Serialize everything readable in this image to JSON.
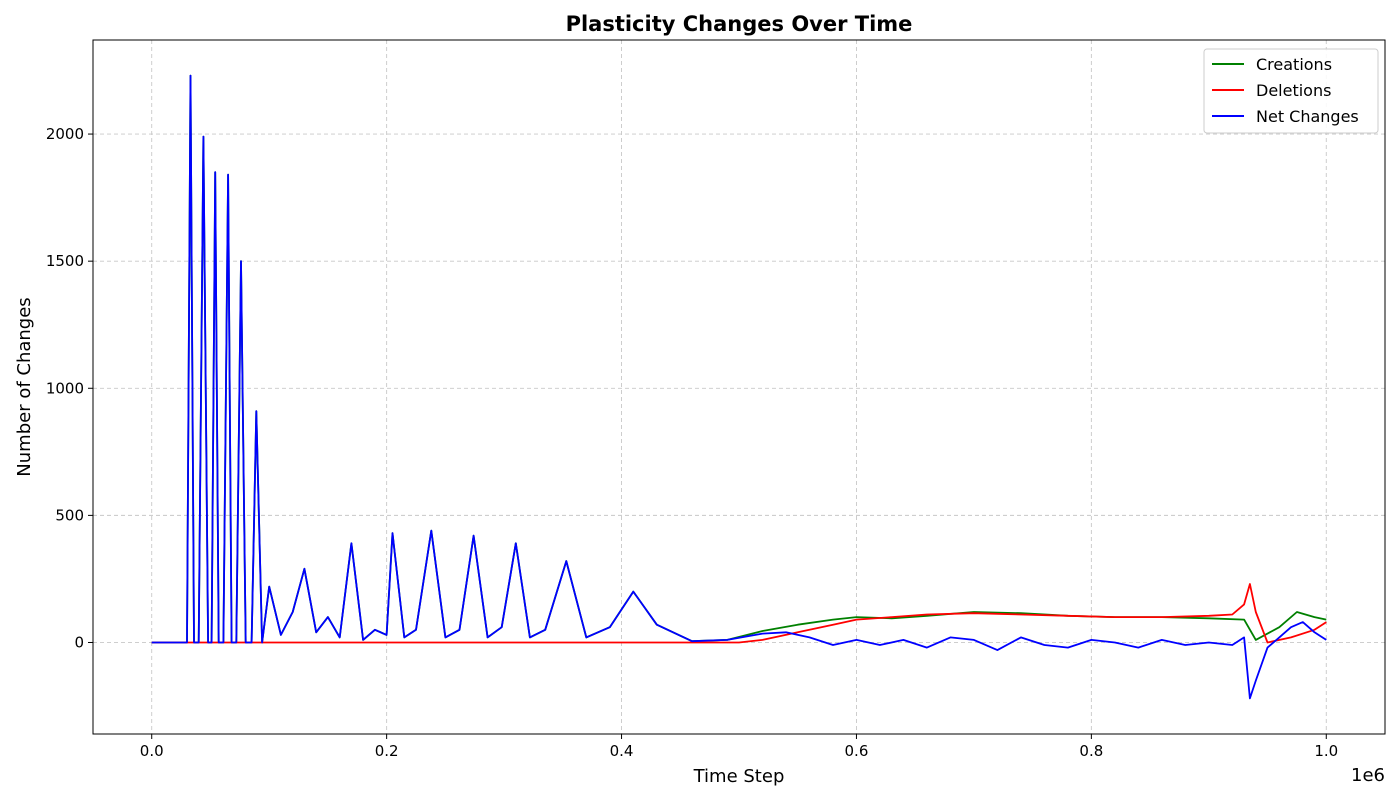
{
  "chart_data": {
    "type": "line",
    "title": "Plasticity Changes Over Time",
    "xlabel": "Time Step",
    "ylabel": "Number of Changes",
    "x_offset_label": "1e6",
    "xlim": [
      -0.05,
      1.05
    ],
    "ylim": [
      -360,
      2370
    ],
    "xticks": [
      0.0,
      0.2,
      0.4,
      0.6,
      0.8,
      1.0
    ],
    "xtick_labels": [
      "0.0",
      "0.2",
      "0.4",
      "0.6",
      "0.8",
      "1.0"
    ],
    "yticks": [
      0,
      500,
      1000,
      1500,
      2000
    ],
    "ytick_labels": [
      "0",
      "500",
      "1000",
      "1500",
      "2000"
    ],
    "grid": true,
    "legend_position": "top-right",
    "series": [
      {
        "name": "Creations",
        "color": "#008000",
        "x": [
          0.0,
          0.03,
          0.033,
          0.036,
          0.04,
          0.044,
          0.048,
          0.051,
          0.054,
          0.057,
          0.061,
          0.065,
          0.068,
          0.072,
          0.076,
          0.08,
          0.085,
          0.089,
          0.094,
          0.1,
          0.11,
          0.12,
          0.13,
          0.14,
          0.15,
          0.16,
          0.17,
          0.18,
          0.19,
          0.2,
          0.205,
          0.215,
          0.225,
          0.238,
          0.25,
          0.262,
          0.274,
          0.286,
          0.298,
          0.31,
          0.322,
          0.335,
          0.353,
          0.37,
          0.39,
          0.41,
          0.43,
          0.46,
          0.49,
          0.52,
          0.55,
          0.58,
          0.6,
          0.63,
          0.66,
          0.7,
          0.74,
          0.78,
          0.82,
          0.86,
          0.9,
          0.93,
          0.94,
          0.96,
          0.975,
          0.99,
          1.0
        ],
        "y": [
          0,
          0,
          2230,
          0,
          0,
          1990,
          0,
          0,
          1850,
          0,
          0,
          1840,
          0,
          0,
          1500,
          0,
          0,
          910,
          0,
          220,
          30,
          120,
          290,
          40,
          100,
          20,
          390,
          10,
          50,
          30,
          430,
          20,
          50,
          440,
          20,
          50,
          420,
          20,
          60,
          390,
          20,
          50,
          320,
          20,
          60,
          200,
          70,
          5,
          10,
          45,
          70,
          90,
          100,
          95,
          105,
          120,
          115,
          105,
          100,
          100,
          95,
          90,
          10,
          60,
          120,
          100,
          90
        ]
      },
      {
        "name": "Deletions",
        "color": "#ff0000",
        "x": [
          0.0,
          0.2,
          0.4,
          0.5,
          0.52,
          0.55,
          0.58,
          0.6,
          0.63,
          0.66,
          0.7,
          0.74,
          0.78,
          0.82,
          0.86,
          0.9,
          0.92,
          0.93,
          0.935,
          0.94,
          0.95,
          0.97,
          0.99,
          1.0
        ],
        "y": [
          0,
          0,
          0,
          0,
          10,
          40,
          70,
          90,
          100,
          110,
          115,
          110,
          105,
          100,
          100,
          105,
          110,
          150,
          230,
          120,
          0,
          20,
          50,
          80
        ]
      },
      {
        "name": "Net Changes",
        "color": "#0000ff",
        "x": [
          0.0,
          0.03,
          0.033,
          0.036,
          0.04,
          0.044,
          0.048,
          0.051,
          0.054,
          0.057,
          0.061,
          0.065,
          0.068,
          0.072,
          0.076,
          0.08,
          0.085,
          0.089,
          0.094,
          0.1,
          0.11,
          0.12,
          0.13,
          0.14,
          0.15,
          0.16,
          0.17,
          0.18,
          0.19,
          0.2,
          0.205,
          0.215,
          0.225,
          0.238,
          0.25,
          0.262,
          0.274,
          0.286,
          0.298,
          0.31,
          0.322,
          0.335,
          0.353,
          0.37,
          0.39,
          0.41,
          0.43,
          0.46,
          0.49,
          0.52,
          0.54,
          0.56,
          0.58,
          0.6,
          0.62,
          0.64,
          0.66,
          0.68,
          0.7,
          0.72,
          0.74,
          0.76,
          0.78,
          0.8,
          0.82,
          0.84,
          0.86,
          0.88,
          0.9,
          0.92,
          0.93,
          0.935,
          0.94,
          0.95,
          0.96,
          0.97,
          0.98,
          0.99,
          1.0
        ],
        "y": [
          0,
          0,
          2230,
          0,
          0,
          1990,
          0,
          0,
          1850,
          0,
          0,
          1840,
          0,
          0,
          1500,
          0,
          0,
          910,
          0,
          220,
          30,
          120,
          290,
          40,
          100,
          20,
          390,
          10,
          50,
          30,
          430,
          20,
          50,
          440,
          20,
          50,
          420,
          20,
          60,
          390,
          20,
          50,
          320,
          20,
          60,
          200,
          70,
          5,
          10,
          35,
          40,
          20,
          -10,
          10,
          -10,
          10,
          -20,
          20,
          10,
          -30,
          20,
          -10,
          -20,
          10,
          0,
          -20,
          10,
          -10,
          0,
          -10,
          20,
          -220,
          -150,
          -20,
          20,
          60,
          80,
          40,
          10
        ]
      }
    ]
  }
}
